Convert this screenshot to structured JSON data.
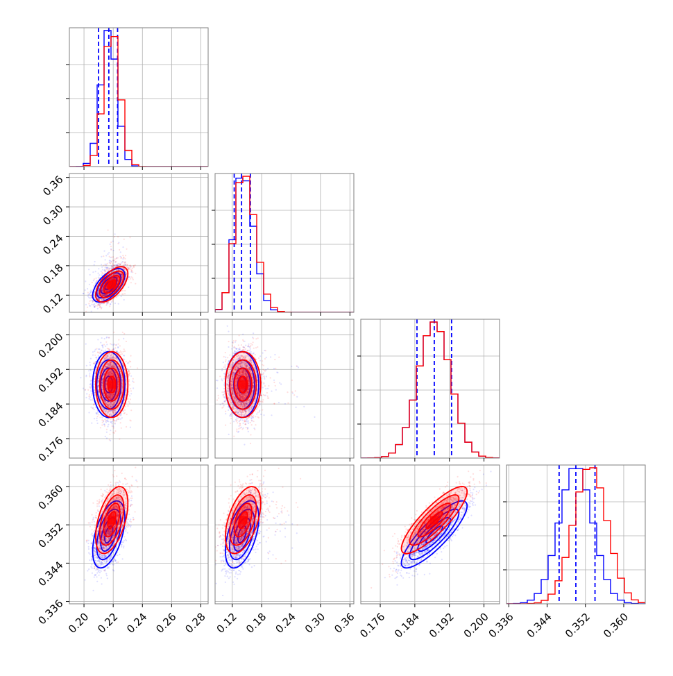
{
  "chart_data": {
    "type": "scatter",
    "subtype": "corner-plot",
    "title": "",
    "parameters": [
      {
        "label": "",
        "range": [
          0.19,
          0.285
        ],
        "ticks": [
          "0.20",
          "0.22",
          "0.24",
          "0.26",
          "0.28"
        ],
        "tick_values": [
          0.2,
          0.22,
          0.24,
          0.26,
          0.28
        ]
      },
      {
        "label": "",
        "range": [
          0.085,
          0.368
        ],
        "ticks": [
          "0.12",
          "0.18",
          "0.24",
          "0.30",
          "0.36"
        ],
        "tick_values": [
          0.12,
          0.18,
          0.24,
          0.3,
          0.36
        ]
      },
      {
        "label": "",
        "range": [
          0.1715,
          0.2036
        ],
        "ticks": [
          "0.176",
          "0.184",
          "0.192",
          "0.200"
        ],
        "tick_values": [
          0.176,
          0.184,
          0.192,
          0.2
        ]
      },
      {
        "label": "",
        "range": [
          0.3355,
          0.3645
        ],
        "ticks": [
          "0.336",
          "0.344",
          "0.352",
          "0.360"
        ],
        "tick_values": [
          0.336,
          0.344,
          0.352,
          0.36
        ]
      }
    ],
    "series": [
      {
        "color": "#0000ff",
        "means": [
          0.217,
          0.14,
          0.1885,
          0.35
        ],
        "sigmas": [
          0.0055,
          0.017,
          0.0038,
          0.0035
        ],
        "quantiles": [
          [
            0.21,
            0.217,
            0.223
          ],
          [
            0.124,
            0.139,
            0.157
          ],
          [
            0.1845,
            0.1885,
            0.1925
          ],
          [
            0.3465,
            0.35,
            0.354
          ]
        ],
        "quantile_style": "dashed"
      },
      {
        "color": "#ff0000",
        "means": [
          0.219,
          0.142,
          0.1885,
          0.353
        ],
        "sigmas": [
          0.0055,
          0.018,
          0.0038,
          0.0035
        ]
      }
    ],
    "correlations": {
      "0-1": 0.6,
      "0-2": 0.0,
      "1-2": 0.0,
      "0-3": 0.5,
      "1-3": 0.5,
      "2-3": 0.85
    },
    "grid": true,
    "contour_levels_sigma": [
      0.5,
      1.0,
      1.5,
      2.0
    ]
  }
}
